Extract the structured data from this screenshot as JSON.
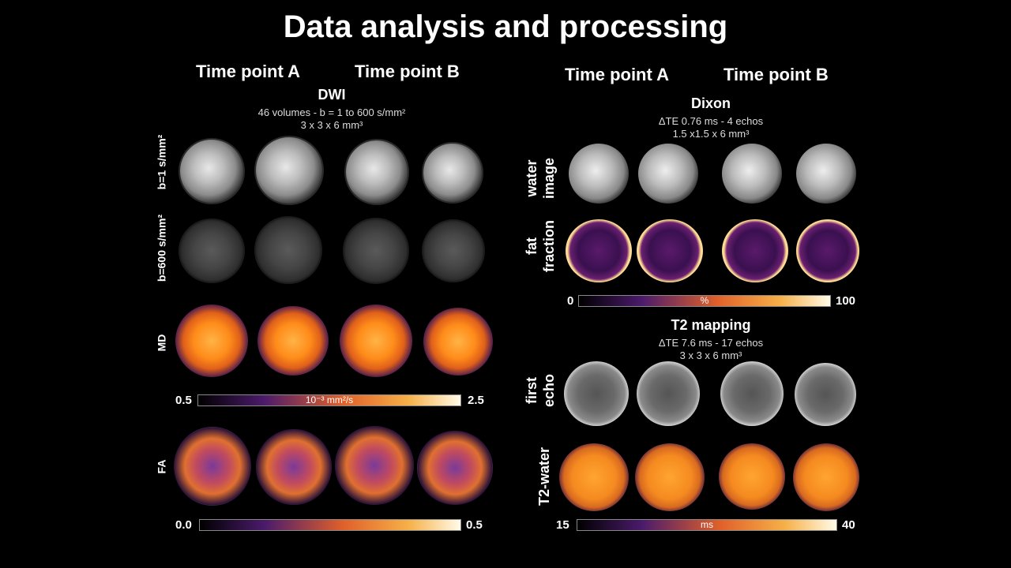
{
  "title": "Data analysis and processing",
  "time_points": {
    "left_a": "Time point A",
    "left_b": "Time point B",
    "right_a": "Time point A",
    "right_b": "Time point B"
  },
  "dwi": {
    "title": "DWI",
    "line1": "46 volumes - b = 1 to 600 s/mm²",
    "line2": "3 x 3 x 6 mm³",
    "row_b1": "b=1 s/mm²",
    "row_b600": "b=600 s/mm²",
    "row_md": "MD",
    "row_fa": "FA",
    "md_min": "0.5",
    "md_max": "2.5",
    "md_unit": "10⁻³ mm²/s",
    "fa_min": "0.0",
    "fa_max": "0.5"
  },
  "dixon": {
    "title": "Dixon",
    "line1": "ΔTE 0.76 ms - 4 echos",
    "line2": "1.5 x1.5 x 6 mm³",
    "row_water": "water image",
    "row_water_1": "water",
    "row_water_2": "image",
    "row_fat_1": "fat",
    "row_fat_2": "fraction",
    "min": "0",
    "max": "100",
    "unit": "%"
  },
  "t2": {
    "title": "T2 mapping",
    "line1": "ΔTE 7.6 ms - 17 echos",
    "line2": "3 x 3 x 6 mm³",
    "row_echo_1": "first",
    "row_echo_2": "echo",
    "row_t2w": "T2-water",
    "min": "15",
    "max": "40",
    "unit": "ms"
  },
  "colors": {
    "colormap_start": "#000000",
    "colormap_mid1": "#4b1b6b",
    "colormap_mid2": "#e0602a",
    "colormap_mid3": "#f6b048",
    "colormap_end": "#fffbe8"
  }
}
